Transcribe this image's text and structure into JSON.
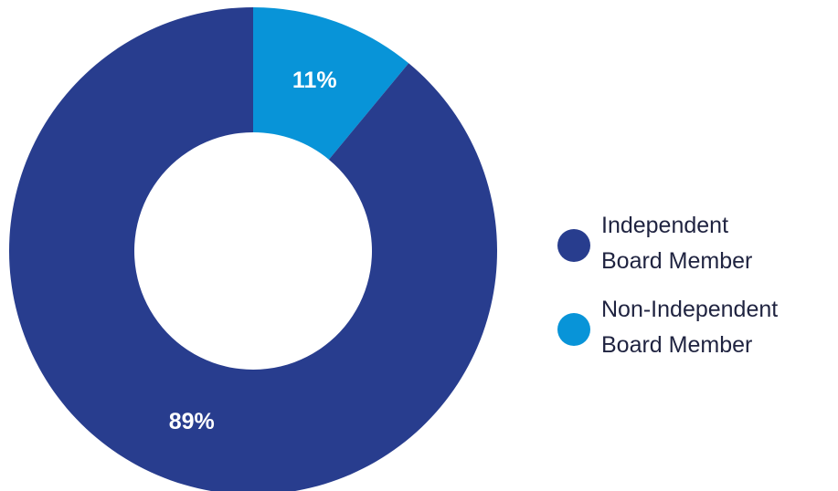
{
  "chart_data": {
    "type": "pie",
    "donut": true,
    "title": "",
    "slices": [
      {
        "label": "Non-Independent Board Member",
        "value": 11,
        "display": "11%",
        "color": "#0894d8"
      },
      {
        "label": "Independent Board Member",
        "value": 89,
        "display": "89%",
        "color": "#283d8e"
      }
    ],
    "legend_position": "right",
    "legend": [
      {
        "line1": "Independent",
        "line2": "Board Member",
        "color": "#283d8e"
      },
      {
        "line1": "Non-Independent",
        "line2": "Board Member",
        "color": "#0894d8"
      }
    ]
  }
}
